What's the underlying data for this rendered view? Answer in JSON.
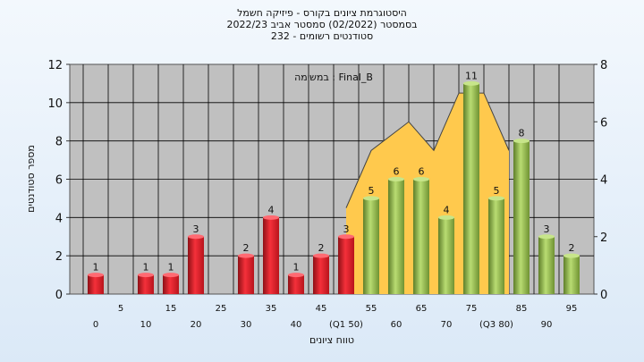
{
  "titles": {
    "line1": "היסטוגרמת ציונים בקורס - פיזיקה חשמל",
    "line2": "בסמסטר  (02/2022)  סמסטר אביב 2022/23",
    "line3": "סטודנטים רשומים - 232"
  },
  "chart_data": {
    "type": "bar",
    "ylabel": "מספר סטודנטים",
    "xlabel": "טווח ציונים",
    "annotation": "במשימה : Final_B",
    "ylim": [
      0,
      12
    ],
    "y_ticks": [
      0,
      2,
      4,
      6,
      8,
      10,
      12
    ],
    "y2lim": [
      0,
      8
    ],
    "y2_ticks": [
      0,
      2,
      4,
      6,
      8
    ],
    "categories": [
      0,
      5,
      10,
      15,
      20,
      25,
      30,
      35,
      40,
      45,
      50,
      55,
      60,
      65,
      70,
      75,
      80,
      85,
      90,
      95
    ],
    "x_tick_labels": [
      "0",
      "5",
      "10",
      "15",
      "20",
      "25",
      "30",
      "35",
      "40",
      "45",
      "(Q1 50)",
      "55",
      "60",
      "65",
      "70",
      "75",
      "(Q3 80)",
      "85",
      "90",
      "95"
    ],
    "values": [
      1,
      0,
      1,
      1,
      3,
      0,
      2,
      4,
      1,
      2,
      3,
      5,
      6,
      6,
      4,
      11,
      5,
      8,
      3,
      2
    ],
    "pass_threshold": 55,
    "area_series": {
      "x": [
        50,
        50,
        55,
        62.5,
        67.5,
        72.5,
        77.5,
        82.5
      ],
      "values": [
        0,
        3,
        5,
        6,
        5,
        7,
        7,
        5
      ]
    },
    "grid": true,
    "colors": {
      "fail_bar": "#e8222e",
      "pass_bar": "#92c04a",
      "area": "#ffc94d",
      "plot_bg": "#c0c0c0"
    }
  }
}
